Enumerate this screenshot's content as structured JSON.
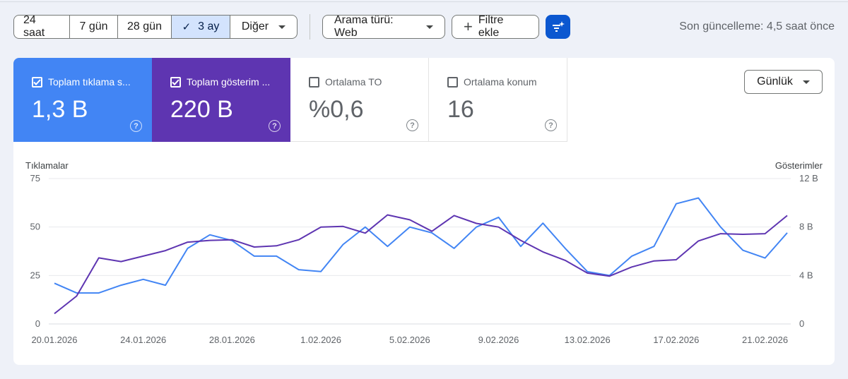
{
  "toolbar": {
    "ranges": [
      {
        "label": "24 saat",
        "active": false
      },
      {
        "label": "7 gün",
        "active": false
      },
      {
        "label": "28 gün",
        "active": false
      },
      {
        "label": "3 ay",
        "active": true
      },
      {
        "label": "Diğer",
        "active": false
      }
    ],
    "search_type_label": "Arama türü: Web",
    "add_filter_label": "Filtre ekle",
    "last_update": "Son güncelleme: 4,5 saat önce"
  },
  "metrics": [
    {
      "label": "Toplam tıklama s...",
      "value": "1,3 B",
      "checked": true,
      "color": "#4285f4"
    },
    {
      "label": "Toplam gösterim ...",
      "value": "220 B",
      "checked": true,
      "color": "#5e35b1"
    },
    {
      "label": "Ortalama TO",
      "value": "%0,6",
      "checked": false
    },
    {
      "label": "Ortalama konum",
      "value": "16",
      "checked": false
    }
  ],
  "granularity": "Günlük",
  "chart_data": {
    "type": "line",
    "y_left_label": "Tıklamalar",
    "y_right_label": "Gösterimler",
    "y_left_ticks": [
      "75",
      "50",
      "25",
      "0"
    ],
    "y_right_ticks": [
      "12 B",
      "8 B",
      "4 B",
      "0"
    ],
    "ylim_left": [
      0,
      75
    ],
    "ylim_right": [
      0,
      12000
    ],
    "x_tick_labels": [
      "20.01.2026",
      "24.01.2026",
      "28.01.2026",
      "1.02.2026",
      "5.02.2026",
      "9.02.2026",
      "13.02.2026",
      "17.02.2026",
      "21.02.2026"
    ],
    "x": [
      "20.01.2026",
      "21.01.2026",
      "22.01.2026",
      "23.01.2026",
      "24.01.2026",
      "25.01.2026",
      "26.01.2026",
      "27.01.2026",
      "28.01.2026",
      "29.01.2026",
      "30.01.2026",
      "31.01.2026",
      "1.02.2026",
      "2.02.2026",
      "3.02.2026",
      "4.02.2026",
      "5.02.2026",
      "6.02.2026",
      "7.02.2026",
      "8.02.2026",
      "9.02.2026",
      "10.02.2026",
      "11.02.2026",
      "12.02.2026",
      "13.02.2026",
      "14.02.2026",
      "15.02.2026",
      "16.02.2026",
      "17.02.2026",
      "18.02.2026",
      "19.02.2026",
      "20.02.2026",
      "21.02.2026",
      "22.02.2026"
    ],
    "series": [
      {
        "name": "Toplam tıklama s...",
        "axis": "left",
        "color": "#4285f4",
        "values": [
          21,
          16,
          16,
          20,
          23,
          20,
          39,
          46,
          43,
          35,
          35,
          28,
          27,
          41,
          50,
          40,
          50,
          47,
          39,
          50,
          55,
          40,
          52,
          39,
          27,
          25,
          35,
          40,
          62,
          65,
          50,
          38,
          34,
          47
        ]
      },
      {
        "name": "Toplam gösterim ...",
        "axis": "right",
        "color": "#5e35b1",
        "values": [
          850,
          2300,
          5450,
          5150,
          5600,
          6050,
          6750,
          6900,
          6950,
          6350,
          6450,
          6950,
          8000,
          8050,
          7500,
          9000,
          8600,
          7650,
          8950,
          8300,
          8000,
          6900,
          5950,
          5250,
          4200,
          3950,
          4700,
          5200,
          5300,
          6850,
          7450,
          7400,
          7450,
          8950
        ]
      }
    ],
    "grid": true
  }
}
